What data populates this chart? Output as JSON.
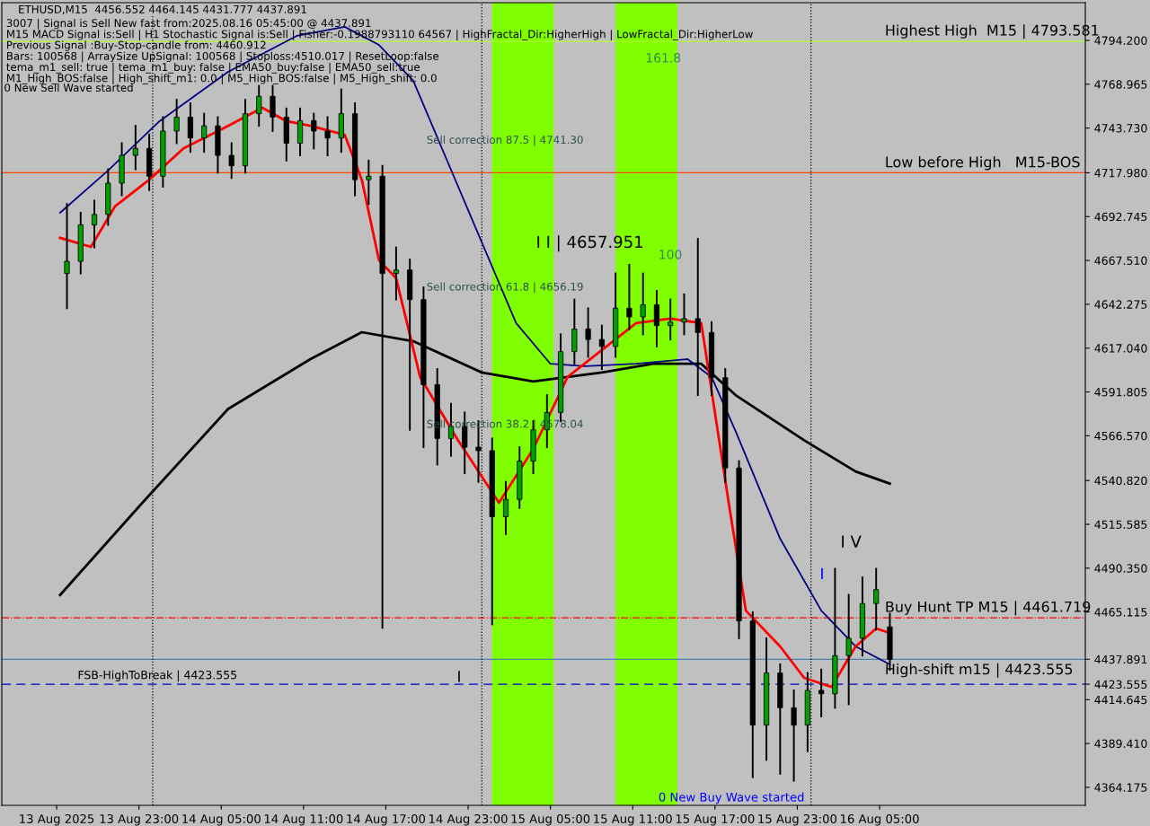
{
  "chart_data": {
    "type": "candlestick",
    "title": "ETHUSD,M15  4456.552 4464.145 4431.777 4437.891",
    "annotations": [
      "3007 | Signal is Sell New fast from:2025.08.16 05:45:00 @ 4437.891",
      "M15 MACD Signal is:Sell | H1 Stochastic Signal is:Sell | Fisher:-0.1988793110 64567 | HighFractal_Dir:HigherHigh | LowFractal_Dir:HigherLow",
      "Previous Signal :Buy-Stop-candle from: 4460.912",
      "Bars: 100568 | ArraySize UpSignal: 100568 | Stoploss:4510.017 | ResetLoop:false",
      "tema_m1_sell: true | tema_m1_buy: false | EMA50_buy:false | EMA50_sell:true",
      "M1_High_BOS:false | High_shift_m1: 0.0 | M5_High_BOS:false | M5_High_shift: 0.0",
      "0 New Sell Wave started",
      "Sell correction 87.5 | 4741.30",
      "Sell correction 61.8 | 4656.19",
      "Sell correction 38.2 | 4578.04",
      "I I | 4657.951",
      "161.8",
      "100",
      "I V",
      "I",
      "I",
      "High-shift m15 | 4423.555",
      "0 New Buy Wave started"
    ],
    "x": [
      "2025-08-13T17:45",
      "2025-08-13T18:45",
      "2025-08-13T19:45",
      "2025-08-13T20:45",
      "2025-08-13T21:45",
      "2025-08-13T22:45",
      "2025-08-13T23:45",
      "2025-08-14T00:45",
      "2025-08-14T01:45",
      "2025-08-14T02:45",
      "2025-08-14T03:45",
      "2025-08-14T04:45",
      "2025-08-14T05:45",
      "2025-08-14T06:45",
      "2025-08-14T07:45",
      "2025-08-14T08:45",
      "2025-08-14T09:45",
      "2025-08-14T10:45",
      "2025-08-14T11:45",
      "2025-08-14T12:45",
      "2025-08-14T13:45",
      "2025-08-14T14:45",
      "2025-08-14T15:45",
      "2025-08-14T16:45",
      "2025-08-14T17:45",
      "2025-08-14T18:45",
      "2025-08-14T19:45",
      "2025-08-14T20:45",
      "2025-08-14T21:45",
      "2025-08-14T22:45",
      "2025-08-14T23:45",
      "2025-08-15T00:45",
      "2025-08-15T01:45",
      "2025-08-15T02:45",
      "2025-08-15T03:45",
      "2025-08-15T04:45",
      "2025-08-15T05:45",
      "2025-08-15T06:45",
      "2025-08-15T07:45",
      "2025-08-15T08:45",
      "2025-08-15T09:45",
      "2025-08-15T10:45",
      "2025-08-15T11:45",
      "2025-08-15T12:45",
      "2025-08-15T13:45",
      "2025-08-15T14:45",
      "2025-08-15T15:45",
      "2025-08-15T16:45",
      "2025-08-15T17:45",
      "2025-08-15T18:45",
      "2025-08-15T19:45",
      "2025-08-15T20:45",
      "2025-08-15T21:45",
      "2025-08-15T22:45",
      "2025-08-15T23:45",
      "2025-08-16T00:45",
      "2025-08-16T01:45",
      "2025-08-16T02:45",
      "2025-08-16T03:45",
      "2025-08-16T04:45",
      "2025-08-16T05:45"
    ],
    "ohlc": [
      [
        4660,
        4700,
        4640,
        4667
      ],
      [
        4667,
        4695,
        4660,
        4688
      ],
      [
        4688,
        4702,
        4675,
        4694
      ],
      [
        4694,
        4720,
        4688,
        4712
      ],
      [
        4712,
        4735,
        4705,
        4728
      ],
      [
        4728,
        4745,
        4720,
        4732
      ],
      [
        4732,
        4740,
        4708,
        4716
      ],
      [
        4716,
        4750,
        4710,
        4742
      ],
      [
        4742,
        4760,
        4735,
        4750
      ],
      [
        4750,
        4758,
        4730,
        4738
      ],
      [
        4738,
        4752,
        4730,
        4745
      ],
      [
        4745,
        4750,
        4718,
        4728
      ],
      [
        4728,
        4735,
        4715,
        4722
      ],
      [
        4722,
        4760,
        4718,
        4752
      ],
      [
        4752,
        4768,
        4745,
        4762
      ],
      [
        4762,
        4768,
        4742,
        4750
      ],
      [
        4750,
        4755,
        4725,
        4735
      ],
      [
        4735,
        4755,
        4728,
        4748
      ],
      [
        4748,
        4752,
        4732,
        4742
      ],
      [
        4742,
        4750,
        4728,
        4738
      ],
      [
        4738,
        4766,
        4730,
        4752
      ],
      [
        4752,
        4758,
        4705,
        4714
      ],
      [
        4714,
        4725,
        4700,
        4716
      ],
      [
        4716,
        4722,
        4456,
        4660
      ],
      [
        4660,
        4675,
        4645,
        4662
      ],
      [
        4662,
        4668,
        4570,
        4645
      ],
      [
        4645,
        4652,
        4560,
        4596
      ],
      [
        4596,
        4605,
        4550,
        4565
      ],
      [
        4565,
        4585,
        4555,
        4572
      ],
      [
        4572,
        4580,
        4545,
        4560
      ],
      [
        4560,
        4575,
        4540,
        4558
      ],
      [
        4558,
        4565,
        4458,
        4520
      ],
      [
        4520,
        4540,
        4510,
        4530
      ],
      [
        4530,
        4560,
        4525,
        4552
      ],
      [
        4552,
        4575,
        4545,
        4570
      ],
      [
        4570,
        4590,
        4560,
        4580
      ],
      [
        4580,
        4625,
        4575,
        4615
      ],
      [
        4615,
        4645,
        4608,
        4628
      ],
      [
        4628,
        4640,
        4612,
        4622
      ],
      [
        4622,
        4630,
        4605,
        4618
      ],
      [
        4618,
        4660,
        4612,
        4640
      ],
      [
        4640,
        4665,
        4628,
        4635
      ],
      [
        4635,
        4660,
        4625,
        4642
      ],
      [
        4642,
        4650,
        4618,
        4630
      ],
      [
        4630,
        4645,
        4622,
        4632
      ],
      [
        4632,
        4648,
        4625,
        4634
      ],
      [
        4634,
        4680,
        4590,
        4626
      ],
      [
        4626,
        4632,
        4590,
        4600
      ],
      [
        4600,
        4605,
        4540,
        4548
      ],
      [
        4548,
        4552,
        4450,
        4460
      ],
      [
        4460,
        4465,
        4370,
        4400
      ],
      [
        4400,
        4450,
        4380,
        4430
      ],
      [
        4430,
        4435,
        4372,
        4410
      ],
      [
        4410,
        4420,
        4368,
        4400
      ],
      [
        4400,
        4430,
        4385,
        4420
      ],
      [
        4420,
        4432,
        4405,
        4418
      ],
      [
        4418,
        4490,
        4410,
        4440
      ],
      [
        4440,
        4475,
        4412,
        4450
      ],
      [
        4450,
        4485,
        4440,
        4470
      ],
      [
        4470,
        4490,
        4455,
        4478
      ],
      [
        4456.552,
        4464.145,
        4431.777,
        4437.891
      ]
    ],
    "colors": [
      "#00a000",
      "#00a000",
      "#00a000",
      "#00a000",
      "#00a000",
      "#00a000",
      "#000000",
      "#00a000",
      "#00a000",
      "#000000",
      "#00a000",
      "#000000",
      "#000000",
      "#00a000",
      "#00a000",
      "#000000",
      "#000000",
      "#00a000",
      "#000000",
      "#000000",
      "#00a000",
      "#000000",
      "#00a000",
      "#000000",
      "#00a000",
      "#000000",
      "#000000",
      "#000000",
      "#00a000",
      "#000000",
      "#000000",
      "#000000",
      "#00a000",
      "#00a000",
      "#00a000",
      "#00a000",
      "#00a000",
      "#00a000",
      "#000000",
      "#000000",
      "#00a000",
      "#000000",
      "#00a000",
      "#000000",
      "#00a000",
      "#00a000",
      "#000000",
      "#000000",
      "#000000",
      "#000000",
      "#000000",
      "#00a000",
      "#000000",
      "#000000",
      "#00a000",
      "#000000",
      "#00a000",
      "#00a000",
      "#00a000",
      "#00a000",
      "#000000"
    ],
    "series": [
      {
        "type": "line",
        "color": "#000000",
        "x": [
          "2025-08-13T17:15",
          "2025-08-13T23:15",
          "2025-08-14T05:30",
          "2025-08-14T11:30",
          "2025-08-14T15:15",
          "2025-08-14T19:00",
          "2025-08-15T00:00",
          "2025-08-15T03:45",
          "2025-08-15T08:45",
          "2025-08-15T12:30",
          "2025-08-15T16:00",
          "2025-08-15T18:30",
          "2025-08-15T23:30",
          "2025-08-16T03:15",
          "2025-08-16T05:45"
        ],
        "values": [
          4474.9,
          4528,
          4582,
          4610.7,
          4626.2,
          4621,
          4603,
          4597.8,
          4603,
          4608,
          4608,
          4590,
          4564,
          4546,
          4539
        ]
      },
      {
        "type": "line",
        "color": "#000080",
        "x": [
          "2025-08-13T17:15",
          "2025-08-13T20:45",
          "2025-08-14T00:30",
          "2025-08-14T05:30",
          "2025-08-14T10:30",
          "2025-08-14T14:00",
          "2025-08-14T16:30",
          "2025-08-14T19:00",
          "2025-08-14T21:30",
          "2025-08-15T00:00",
          "2025-08-15T02:30",
          "2025-08-15T05:00",
          "2025-08-15T07:30",
          "2025-08-15T11:15",
          "2025-08-15T15:00",
          "2025-08-15T16:45",
          "2025-08-15T18:30",
          "2025-08-15T21:45",
          "2025-08-16T00:45",
          "2025-08-16T03:15",
          "2025-08-16T05:45"
        ],
        "values": [
          4695,
          4719.3,
          4747.7,
          4776.1,
          4796.8,
          4802,
          4791.6,
          4771,
          4724.4,
          4677.9,
          4631.4,
          4608,
          4606.6,
          4608,
          4610.7,
          4600.4,
          4569.3,
          4507.3,
          4465.9,
          4445.3,
          4434.9
        ]
      },
      {
        "type": "line",
        "color": "#ff0000",
        "x": [
          "2025-08-13T17:15",
          "2025-08-13T19:30",
          "2025-08-13T21:15",
          "2025-08-13T23:45",
          "2025-08-14T02:15",
          "2025-08-14T05:30",
          "2025-08-14T08:00",
          "2025-08-14T09:45",
          "2025-08-14T11:30",
          "2025-08-14T14:00",
          "2025-08-14T15:15",
          "2025-08-14T16:30",
          "2025-08-14T17:45",
          "2025-08-14T19:30",
          "2025-08-14T22:15",
          "2025-08-15T01:15",
          "2025-08-15T03:45",
          "2025-08-15T06:15",
          "2025-08-15T08:45",
          "2025-08-15T11:15",
          "2025-08-15T13:45",
          "2025-08-15T16:00",
          "2025-08-15T18:00",
          "2025-08-15T19:15",
          "2025-08-15T21:45",
          "2025-08-15T23:30",
          "2025-08-16T01:30",
          "2025-08-16T03:15",
          "2025-08-16T04:45",
          "2025-08-16T05:45"
        ],
        "values": [
          4680.5,
          4675.3,
          4698.6,
          4714,
          4732,
          4745,
          4755.4,
          4747.7,
          4745,
          4739.9,
          4714,
          4667.6,
          4657.3,
          4600.4,
          4564.2,
          4528,
          4559,
          4600.4,
          4615.9,
          4631.4,
          4634,
          4631.4,
          4528,
          4465.9,
          4445.3,
          4427.2,
          4422,
          4445.3,
          4455.6,
          4453
        ]
      }
    ],
    "bands": [
      {
        "axis": "x",
        "from": "2025-08-15T00:45",
        "to": "2025-08-15T05:15",
        "color": "#80ff00"
      },
      {
        "axis": "x",
        "from": "2025-08-15T09:45",
        "to": "2025-08-15T14:15",
        "color": "#80ff00"
      }
    ],
    "ref_lines": [
      {
        "axis": "y",
        "value": 4423.555,
        "label": "FSB-HighToBreak | 4423.555",
        "color": "#0000cd",
        "line_style": "dashed"
      },
      {
        "axis": "y",
        "value": 4461.719,
        "label": "Buy Hunt TP M15 | 4461.719",
        "color": "#ff0000",
        "line_style": "dashdot"
      },
      {
        "axis": "y",
        "value": 4717.98,
        "label": "Low before High   M15-BOS",
        "color": "#ff4500",
        "line_style": "solid"
      },
      {
        "axis": "y",
        "value": 4793.581,
        "label": "Highest High  M15 | 4793.581",
        "color": "#adff2f",
        "line_style": "solid"
      },
      {
        "axis": "y",
        "value": 4437.891,
        "color": "#4682b4",
        "line_style": "solid"
      },
      {
        "axis": "x",
        "value": "2025-08-14T00:00",
        "color": "#000000",
        "line_style": "dotted"
      },
      {
        "axis": "x",
        "value": "2025-08-15T00:00",
        "color": "#000000",
        "line_style": "dotted"
      },
      {
        "axis": "x",
        "value": "2025-08-16T00:00",
        "color": "#000000",
        "line_style": "dotted"
      }
    ],
    "xlim": [
      "2025-08-13T13:00",
      "2025-08-16T20:00"
    ],
    "xticks": [
      {
        "value": "2025-08-13T17:00",
        "label": "13 Aug 2025"
      },
      {
        "value": "2025-08-13T23:00",
        "label": "13 Aug 23:00"
      },
      {
        "value": "2025-08-14T05:00",
        "label": "14 Aug 05:00"
      },
      {
        "value": "2025-08-14T11:00",
        "label": "14 Aug 11:00"
      },
      {
        "value": "2025-08-14T17:00",
        "label": "14 Aug 17:00"
      },
      {
        "value": "2025-08-14T23:00",
        "label": "14 Aug 23:00"
      },
      {
        "value": "2025-08-15T05:00",
        "label": "15 Aug 05:00"
      },
      {
        "value": "2025-08-15T11:00",
        "label": "15 Aug 11:00"
      },
      {
        "value": "2025-08-15T17:00",
        "label": "15 Aug 17:00"
      },
      {
        "value": "2025-08-15T23:00",
        "label": "15 Aug 23:00"
      },
      {
        "value": "2025-08-16T05:00",
        "label": "16 Aug 05:00"
      }
    ],
    "ylim": [
      4353.8,
      4815.9
    ],
    "yticks": [
      {
        "value": 4794.2,
        "label": "4794.200"
      },
      {
        "value": 4768.965,
        "label": "4768.965"
      },
      {
        "value": 4743.73,
        "label": "4743.730"
      },
      {
        "value": 4717.98,
        "label": "4717.980"
      },
      {
        "value": 4692.745,
        "label": "4692.745"
      },
      {
        "value": 4667.51,
        "label": "4667.510"
      },
      {
        "value": 4642.275,
        "label": "4642.275"
      },
      {
        "value": 4617.04,
        "label": "4617.040"
      },
      {
        "value": 4591.805,
        "label": "4591.805"
      },
      {
        "value": 4566.57,
        "label": "4566.570"
      },
      {
        "value": 4540.82,
        "label": "4540.820"
      },
      {
        "value": 4515.585,
        "label": "4515.585"
      },
      {
        "value": 4490.35,
        "label": "4490.350"
      },
      {
        "value": 4465.115,
        "label": "4465.115"
      },
      {
        "value": 4437.891,
        "label": "4437.891"
      },
      {
        "value": 4423.555,
        "label": "4423.555"
      },
      {
        "value": 4414.645,
        "label": "4414.645"
      },
      {
        "value": 4389.41,
        "label": "4389.410"
      },
      {
        "value": 4364.175,
        "label": "4364.175"
      }
    ],
    "grid": false,
    "legend": false
  }
}
